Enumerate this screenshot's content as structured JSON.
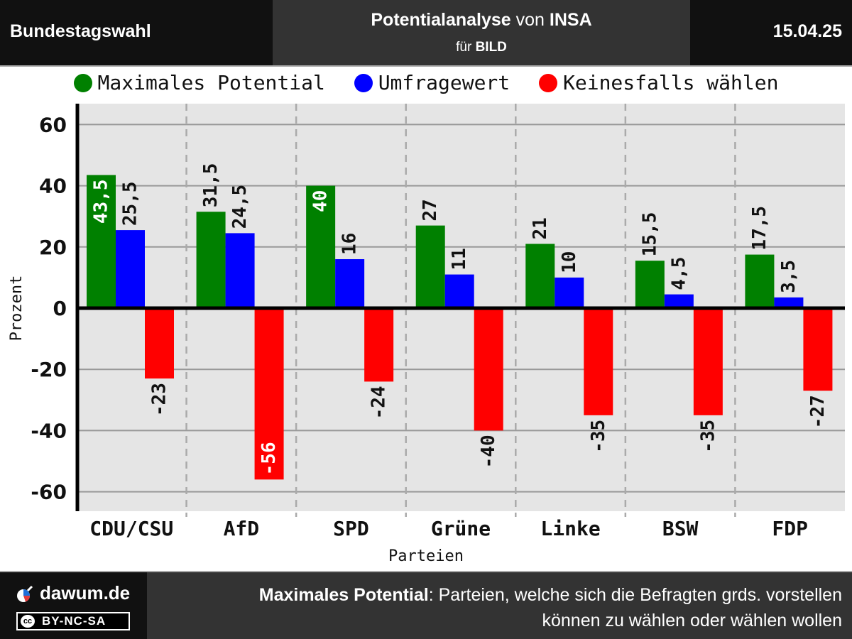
{
  "header": {
    "left": "Bundestagswahl",
    "title_bold1": "Potentialanalyse",
    "title_mid": " von ",
    "title_bold2": "INSA",
    "subtitle_pre": "für ",
    "subtitle_bold": "BILD",
    "date": "15.04.25"
  },
  "legend": [
    {
      "label": "Maximales Potential",
      "color": "#008000"
    },
    {
      "label": "Umfragewert",
      "color": "#0000ff"
    },
    {
      "label": "Keinesfalls wählen",
      "color": "#ff0000"
    }
  ],
  "chart_data": {
    "type": "bar",
    "categories": [
      "CDU/CSU",
      "AfD",
      "SPD",
      "Grüne",
      "Linke",
      "BSW",
      "FDP"
    ],
    "series": [
      {
        "name": "Maximales Potential",
        "color": "#008000",
        "values": [
          43.5,
          31.5,
          40,
          27,
          21,
          15.5,
          17.5
        ],
        "labels": [
          "43,5",
          "31,5",
          "40",
          "27",
          "21",
          "15,5",
          "17,5"
        ]
      },
      {
        "name": "Umfragewert",
        "color": "#0000ff",
        "values": [
          25.5,
          24.5,
          16,
          11,
          10,
          4.5,
          3.5
        ],
        "labels": [
          "25,5",
          "24,5",
          "16",
          "11",
          "10",
          "4,5",
          "3,5"
        ]
      },
      {
        "name": "Keinesfalls wählen",
        "color": "#ff0000",
        "values": [
          -23,
          -56,
          -24,
          -40,
          -35,
          -35,
          -27
        ],
        "labels": [
          "-23",
          "-56",
          "-24",
          "-40",
          "-35",
          "-35",
          "-27"
        ]
      }
    ],
    "xlabel": "Parteien",
    "ylabel": "Prozent",
    "yticks": [
      60,
      40,
      20,
      0,
      -20,
      -40,
      -60
    ],
    "ylim": [
      -66,
      66
    ],
    "grid": true,
    "legend_position": "top"
  },
  "footer": {
    "site": "dawum.de",
    "license": "BY-NC-SA",
    "license_badge": "cc",
    "note_bold": "Maximales Potential",
    "note_line1": ": Parteien, welche sich die Befragten grds. vorstellen",
    "note_line2": "können zu wählen oder wählen wollen"
  }
}
